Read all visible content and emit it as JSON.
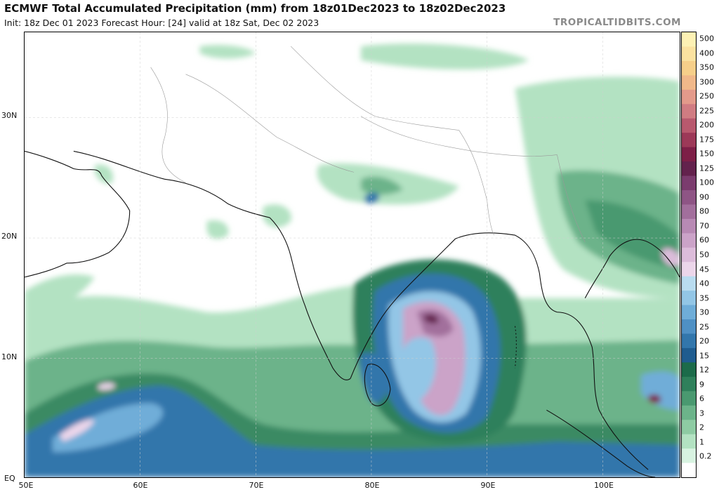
{
  "header": {
    "title": "ECMWF Total Accumulated Precipitation (mm) from 18z01Dec2023 to 18z02Dec2023",
    "subtitle": "Init: 18z Dec 01 2023   Forecast Hour: [24]   valid at 18z Sat, Dec 02 2023",
    "brand": "TROPICALTIDBITS.COM"
  },
  "axes": {
    "lat_labels": [
      "30N",
      "20N",
      "10N",
      "EQ"
    ],
    "lon_labels": [
      "50E",
      "60E",
      "70E",
      "80E",
      "90E",
      "100E"
    ]
  },
  "legend": {
    "levels": [
      {
        "label": "500",
        "color": "#fdf1b4"
      },
      {
        "label": "400",
        "color": "#fbe2a0"
      },
      {
        "label": "350",
        "color": "#f6cf8a"
      },
      {
        "label": "300",
        "color": "#f0b88a"
      },
      {
        "label": "250",
        "color": "#e39a8b"
      },
      {
        "label": "225",
        "color": "#d07c82"
      },
      {
        "label": "200",
        "color": "#b8596e"
      },
      {
        "label": "175",
        "color": "#9c3958"
      },
      {
        "label": "150",
        "color": "#7d1f47"
      },
      {
        "label": "125",
        "color": "#63224d"
      },
      {
        "label": "100",
        "color": "#7b3c6e"
      },
      {
        "label": "90",
        "color": "#8e5585"
      },
      {
        "label": "80",
        "color": "#a26f9c"
      },
      {
        "label": "70",
        "color": "#b88ab4"
      },
      {
        "label": "60",
        "color": "#cba3c8"
      },
      {
        "label": "50",
        "color": "#dcbcda"
      },
      {
        "label": "45",
        "color": "#ecd6ea"
      },
      {
        "label": "40",
        "color": "#b9dcf0"
      },
      {
        "label": "35",
        "color": "#93c6e6"
      },
      {
        "label": "30",
        "color": "#6fadd8"
      },
      {
        "label": "25",
        "color": "#4f90c4"
      },
      {
        "label": "20",
        "color": "#3276ab"
      },
      {
        "label": "15",
        "color": "#1f5c8f"
      },
      {
        "label": "12",
        "color": "#1c6b4a"
      },
      {
        "label": "9",
        "color": "#2f805b"
      },
      {
        "label": "6",
        "color": "#4a9970"
      },
      {
        "label": "3",
        "color": "#6cb38a"
      },
      {
        "label": "2",
        "color": "#8ecba3"
      },
      {
        "label": "1",
        "color": "#b3e2c2"
      },
      {
        "label": "0.2",
        "color": "#d8f3e1"
      },
      {
        "label": "",
        "color": "#ffffff"
      }
    ]
  }
}
